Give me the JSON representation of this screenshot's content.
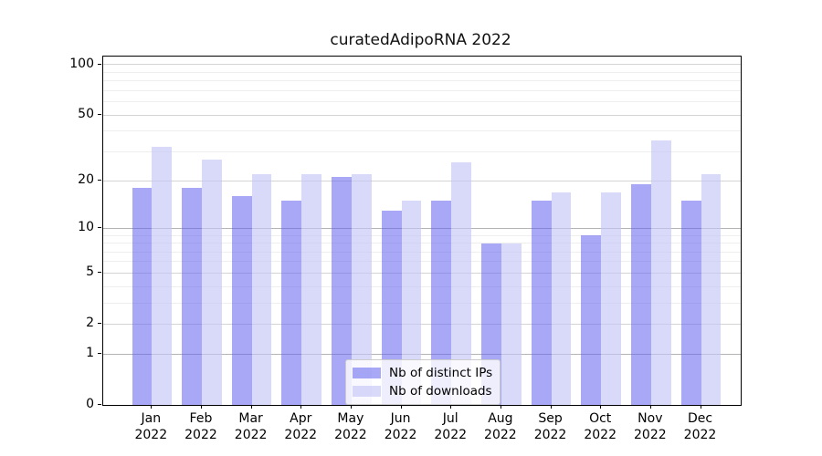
{
  "chart_data": {
    "type": "bar",
    "title": "curatedAdipoRNA 2022",
    "categories": [
      "Jan",
      "Feb",
      "Mar",
      "Apr",
      "May",
      "Jun",
      "Jul",
      "Aug",
      "Sep",
      "Oct",
      "Nov",
      "Dec"
    ],
    "x_tick_second_line": "2022",
    "series": [
      {
        "name": "Nb of distinct IPs",
        "color": "#a9a9f5",
        "fill": "rgba(97,97,239,0.55)",
        "values": [
          18,
          18,
          16,
          15,
          21,
          13,
          15,
          8,
          15,
          9,
          19,
          15
        ]
      },
      {
        "name": "Nb of downloads",
        "color": "#dadaf9",
        "fill": "rgba(197,197,248,0.65)",
        "values": [
          32,
          27,
          22,
          22,
          22,
          15,
          26,
          8,
          17,
          17,
          35,
          22
        ]
      }
    ],
    "y_axis": {
      "scale": "log10(1+y)",
      "ticks": [
        0,
        1,
        2,
        5,
        10,
        20,
        50,
        100
      ],
      "minor_gridlines": [
        3,
        4,
        6,
        7,
        8,
        9,
        30,
        40,
        60,
        70,
        80,
        90
      ],
      "ylim": [
        0,
        113
      ]
    },
    "grid": true,
    "legend_position": "lower center",
    "axis_color": "#000000",
    "major_grid_color": "#d4d4d4",
    "decade_grid_color": "#b4b4b4",
    "minor_grid_color": "#eeeeee"
  }
}
